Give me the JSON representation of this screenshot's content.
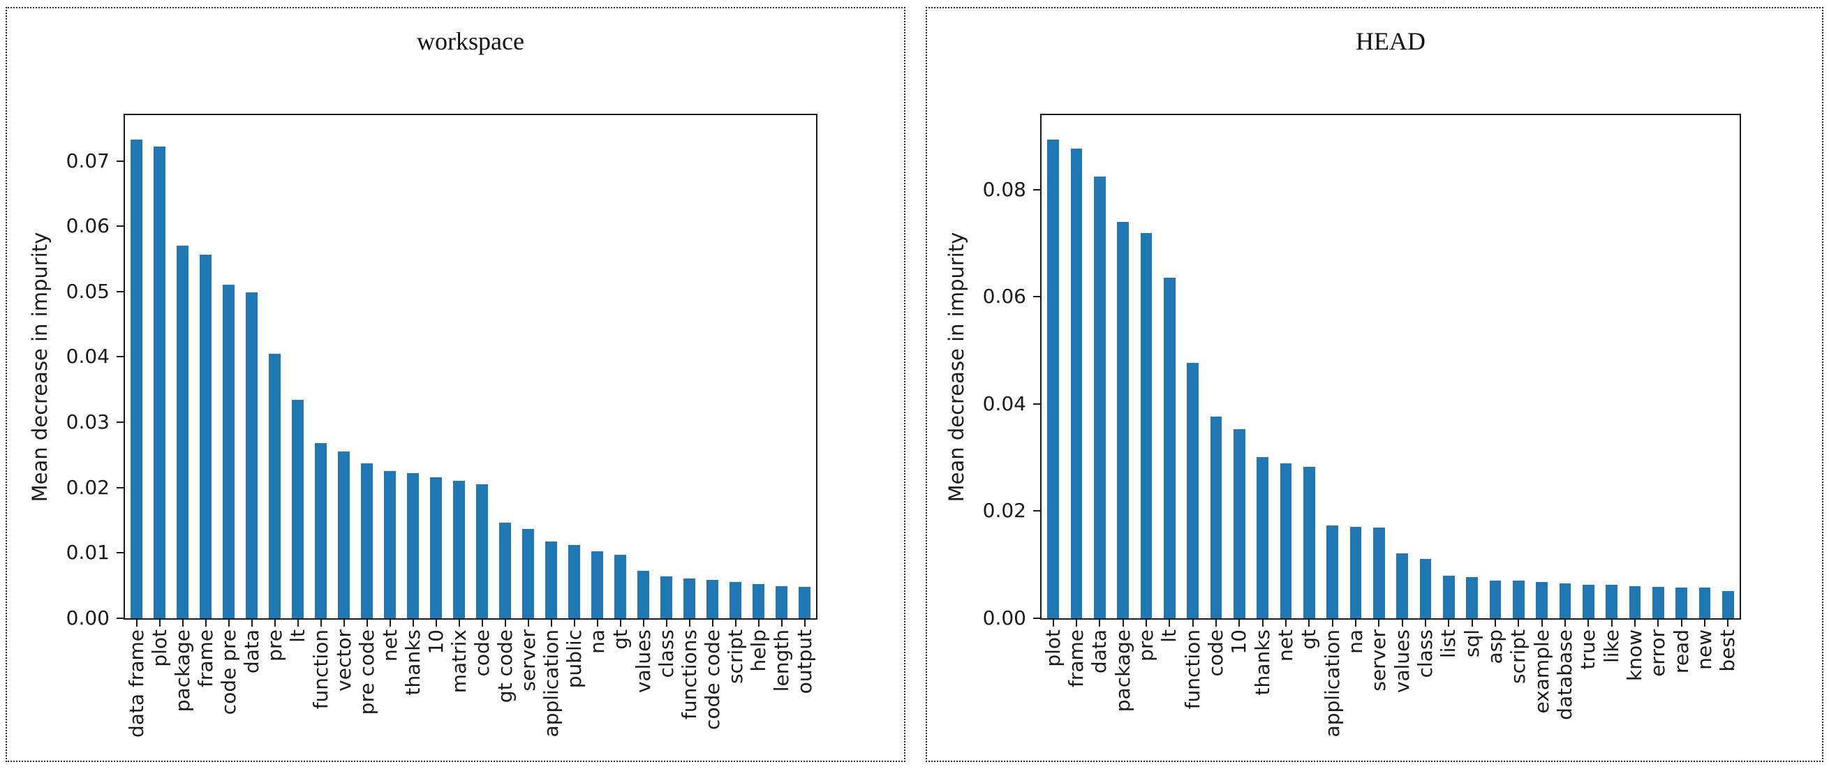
{
  "colors": {
    "bar": "#1f77b4",
    "axis": "#1a1a1a",
    "text": "#1a1a1a"
  },
  "chart_data": [
    {
      "type": "bar",
      "title": "workspace",
      "xlabel": "",
      "ylabel": "Mean decrease in impurity",
      "ylim": [
        0,
        0.077
      ],
      "grid": false,
      "legend": null,
      "yticks": [
        0,
        0.01,
        0.02,
        0.03,
        0.04,
        0.05,
        0.06,
        0.07
      ],
      "ytick_labels": [
        "0.00",
        "0.01",
        "0.02",
        "0.03",
        "0.04",
        "0.05",
        "0.06",
        "0.07"
      ],
      "categories": [
        "data frame",
        "plot",
        "package",
        "frame",
        "code pre",
        "data",
        "pre",
        "lt",
        "function",
        "vector",
        "pre code",
        "net",
        "thanks",
        "10",
        "matrix",
        "code",
        "gt code",
        "server",
        "application",
        "public",
        "na",
        "gt",
        "values",
        "class",
        "functions",
        "code code",
        "script",
        "help",
        "length",
        "output"
      ],
      "values": [
        0.0733,
        0.0722,
        0.057,
        0.0556,
        0.051,
        0.0499,
        0.0405,
        0.0334,
        0.0268,
        0.0255,
        0.0237,
        0.0225,
        0.0222,
        0.0216,
        0.021,
        0.0205,
        0.0146,
        0.0137,
        0.0118,
        0.0112,
        0.0103,
        0.0097,
        0.0073,
        0.0064,
        0.0061,
        0.0059,
        0.0056,
        0.0052,
        0.0049,
        0.0048
      ],
      "bar_color": "#1f77b4"
    },
    {
      "type": "bar",
      "title": "HEAD",
      "xlabel": "",
      "ylabel": "Mean decrease in impurity",
      "ylim": [
        0,
        0.0939
      ],
      "grid": false,
      "legend": null,
      "yticks": [
        0,
        0.02,
        0.04,
        0.06,
        0.08
      ],
      "ytick_labels": [
        "0.00",
        "0.02",
        "0.04",
        "0.06",
        "0.08"
      ],
      "categories": [
        "plot",
        "frame",
        "data",
        "package",
        "pre",
        "lt",
        "function",
        "code",
        "10",
        "thanks",
        "net",
        "gt",
        "application",
        "na",
        "server",
        "values",
        "class",
        "list",
        "sql",
        "asp",
        "script",
        "example",
        "database",
        "true",
        "like",
        "know",
        "error",
        "read",
        "new",
        "best"
      ],
      "values": [
        0.0894,
        0.0877,
        0.0825,
        0.074,
        0.0719,
        0.0635,
        0.0477,
        0.0377,
        0.0353,
        0.0301,
        0.0289,
        0.0283,
        0.0173,
        0.0171,
        0.0169,
        0.0121,
        0.0111,
        0.0079,
        0.0077,
        0.007,
        0.007,
        0.0068,
        0.0065,
        0.0062,
        0.0062,
        0.006,
        0.0058,
        0.0057,
        0.0057,
        0.0051
      ],
      "bar_color": "#1f77b4"
    }
  ]
}
